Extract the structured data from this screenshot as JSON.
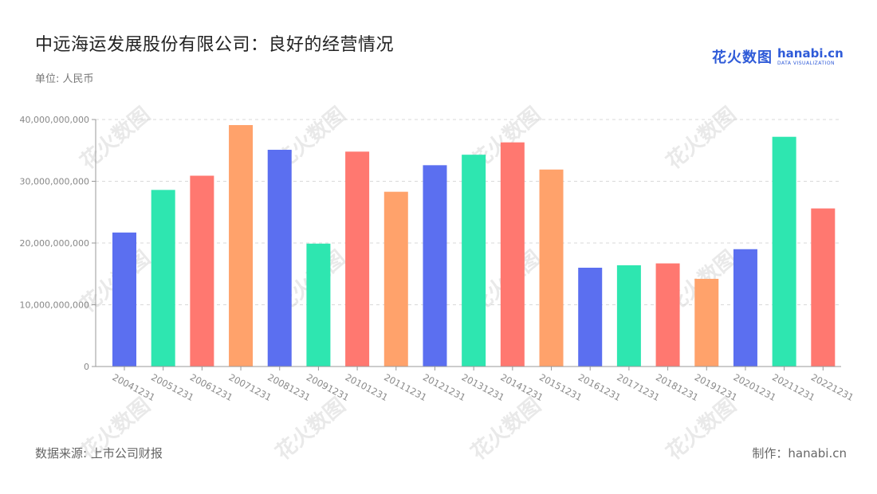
{
  "header": {
    "title": "中远海运发展股份有限公司：良好的经营情况",
    "unit": "单位: 人民币"
  },
  "logo": {
    "cn": "花火数图",
    "en_main": "hanabi.cn",
    "en_sub": "DATA VISUALIZATION"
  },
  "footer": {
    "source": "数据来源: 上市公司财报",
    "credit": "制作：hanabi.cn"
  },
  "watermark": {
    "text": "花火数图"
  },
  "colors": [
    "#5b6ff0",
    "#2ee6b0",
    "#ff7870",
    "#ffa26b"
  ],
  "chart_data": {
    "type": "bar",
    "title": "中远海运发展股份有限公司：良好的经营情况",
    "xlabel": "",
    "ylabel": "单位: 人民币",
    "ylim": [
      0,
      40000000000
    ],
    "yticks": [
      "0",
      "10,000,000,000",
      "20,000,000,000",
      "30,000,000,000",
      "40,000,000,000"
    ],
    "grid": true,
    "categories": [
      "20041231",
      "20051231",
      "20061231",
      "20071231",
      "20081231",
      "20091231",
      "20101231",
      "20111231",
      "20121231",
      "20131231",
      "20141231",
      "20151231",
      "20161231",
      "20171231",
      "20181231",
      "20191231",
      "20201231",
      "20211231",
      "20221231"
    ],
    "values": [
      21700000000,
      28600000000,
      30900000000,
      39100000000,
      35100000000,
      19900000000,
      34800000000,
      28300000000,
      32600000000,
      34300000000,
      36300000000,
      31900000000,
      16000000000,
      16400000000,
      16700000000,
      14200000000,
      19000000000,
      37200000000,
      25600000000
    ]
  }
}
